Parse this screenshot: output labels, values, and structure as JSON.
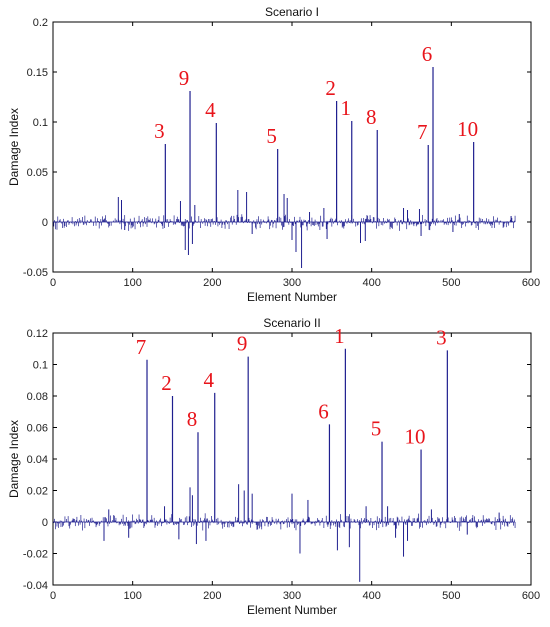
{
  "chart_data": [
    {
      "type": "bar",
      "title": "Scenario I",
      "xlabel": "Element Number",
      "ylabel": "Damage Index",
      "xlim": [
        0,
        600
      ],
      "ylim": [
        -0.05,
        0.2
      ],
      "xticks": [
        "0",
        "100",
        "200",
        "300",
        "400",
        "500",
        "600"
      ],
      "yticks": [
        "-0.05",
        "0",
        "0.05",
        "0.1",
        "0.15",
        "0.2"
      ],
      "grid": false,
      "color": "#1f1f8f",
      "peaks": [
        {
          "x": 141,
          "y": 0.078,
          "label": "3"
        },
        {
          "x": 172,
          "y": 0.131,
          "label": "9"
        },
        {
          "x": 205,
          "y": 0.099,
          "label": "4"
        },
        {
          "x": 282,
          "y": 0.073,
          "label": "5"
        },
        {
          "x": 356,
          "y": 0.121,
          "label": "2"
        },
        {
          "x": 375,
          "y": 0.101,
          "label": "1"
        },
        {
          "x": 407,
          "y": 0.092,
          "label": "8"
        },
        {
          "x": 471,
          "y": 0.077,
          "label": "7"
        },
        {
          "x": 477,
          "y": 0.155,
          "label": "6"
        },
        {
          "x": 528,
          "y": 0.08,
          "label": "10"
        }
      ],
      "noise": [
        [
          82,
          0.025
        ],
        [
          86,
          0.022
        ],
        [
          90,
          -0.008
        ],
        [
          160,
          0.021
        ],
        [
          166,
          -0.028
        ],
        [
          170,
          -0.033
        ],
        [
          175,
          -0.022
        ],
        [
          178,
          0.017
        ],
        [
          232,
          0.032
        ],
        [
          243,
          0.03
        ],
        [
          250,
          -0.012
        ],
        [
          290,
          0.028
        ],
        [
          294,
          0.024
        ],
        [
          300,
          -0.018
        ],
        [
          305,
          -0.03
        ],
        [
          312,
          -0.046
        ],
        [
          322,
          0.01
        ],
        [
          340,
          0.014
        ],
        [
          344,
          -0.017
        ],
        [
          386,
          -0.021
        ],
        [
          392,
          -0.019
        ],
        [
          440,
          0.014
        ],
        [
          445,
          0.012
        ],
        [
          460,
          0.013
        ],
        [
          462,
          -0.014
        ],
        [
          502,
          -0.01
        ],
        [
          510,
          0.008
        ],
        [
          575,
          0.006
        ]
      ]
    },
    {
      "type": "bar",
      "title": "Scenario II",
      "xlabel": "Element Number",
      "ylabel": "Damage Index",
      "xlim": [
        0,
        600
      ],
      "ylim": [
        -0.04,
        0.12
      ],
      "xticks": [
        "0",
        "100",
        "200",
        "300",
        "400",
        "500",
        "600"
      ],
      "yticks": [
        "-0.04",
        "-0.02",
        "0",
        "0.02",
        "0.04",
        "0.06",
        "0.08",
        "0.1",
        "0.12"
      ],
      "grid": false,
      "color": "#1f1f8f",
      "peaks": [
        {
          "x": 118,
          "y": 0.103,
          "label": "7"
        },
        {
          "x": 150,
          "y": 0.08,
          "label": "2"
        },
        {
          "x": 182,
          "y": 0.057,
          "label": "8"
        },
        {
          "x": 203,
          "y": 0.082,
          "label": "4"
        },
        {
          "x": 245,
          "y": 0.105,
          "label": "9"
        },
        {
          "x": 347,
          "y": 0.062,
          "label": "6"
        },
        {
          "x": 367,
          "y": 0.11,
          "label": "1"
        },
        {
          "x": 413,
          "y": 0.051,
          "label": "5"
        },
        {
          "x": 462,
          "y": 0.046,
          "label": "10"
        },
        {
          "x": 495,
          "y": 0.109,
          "label": "3"
        }
      ],
      "noise": [
        [
          64,
          -0.012
        ],
        [
          70,
          0.008
        ],
        [
          95,
          -0.01
        ],
        [
          140,
          0.01
        ],
        [
          158,
          -0.011
        ],
        [
          172,
          0.022
        ],
        [
          175,
          0.017
        ],
        [
          180,
          -0.014
        ],
        [
          192,
          -0.012
        ],
        [
          233,
          0.024
        ],
        [
          240,
          0.02
        ],
        [
          250,
          0.018
        ],
        [
          300,
          0.018
        ],
        [
          310,
          -0.02
        ],
        [
          320,
          0.014
        ],
        [
          357,
          -0.018
        ],
        [
          372,
          -0.016
        ],
        [
          385,
          -0.038
        ],
        [
          393,
          0.01
        ],
        [
          420,
          0.01
        ],
        [
          430,
          -0.01
        ],
        [
          440,
          -0.022
        ],
        [
          445,
          -0.012
        ],
        [
          475,
          0.008
        ],
        [
          520,
          -0.008
        ],
        [
          560,
          0.006
        ]
      ]
    }
  ]
}
